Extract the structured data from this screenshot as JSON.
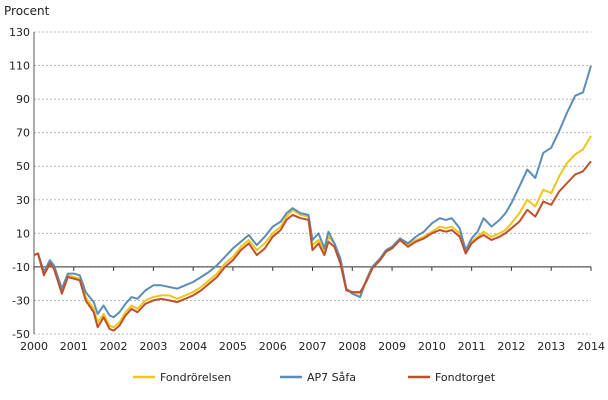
{
  "chart_data": {
    "type": "line",
    "title": "",
    "ylabel": "Procent",
    "xlabel": "",
    "ylim": [
      -50,
      130
    ],
    "xlim": [
      2000,
      2014
    ],
    "yticks": [
      130,
      110,
      90,
      70,
      50,
      30,
      10,
      -10,
      -30,
      -50
    ],
    "xticks": [
      2000,
      2001,
      2002,
      2003,
      2004,
      2005,
      2006,
      2007,
      2008,
      2009,
      2010,
      2011,
      2012,
      2013,
      2014
    ],
    "grid": "horizontal-dashed",
    "legend_position": "bottom",
    "series": [
      {
        "name": "Fondrörelsen",
        "color": "#f2c51a",
        "x": [
          2000,
          2000.1,
          2000.25,
          2000.4,
          2000.5,
          2000.7,
          2000.85,
          2001,
          2001.15,
          2001.3,
          2001.5,
          2001.6,
          2001.75,
          2001.9,
          2002,
          2002.15,
          2002.3,
          2002.45,
          2002.6,
          2002.8,
          2003,
          2003.2,
          2003.4,
          2003.6,
          2003.8,
          2004,
          2004.2,
          2004.4,
          2004.6,
          2004.8,
          2005,
          2005.2,
          2005.4,
          2005.6,
          2005.8,
          2006,
          2006.2,
          2006.35,
          2006.5,
          2006.7,
          2006.9,
          2007,
          2007.15,
          2007.3,
          2007.4,
          2007.55,
          2007.7,
          2007.85,
          2008,
          2008.2,
          2008.35,
          2008.5,
          2008.7,
          2008.85,
          2009,
          2009.2,
          2009.4,
          2009.6,
          2009.8,
          2010,
          2010.2,
          2010.35,
          2010.5,
          2010.7,
          2010.85,
          2011,
          2011.15,
          2011.3,
          2011.5,
          2011.7,
          2011.85,
          2012,
          2012.2,
          2012.4,
          2012.6,
          2012.8,
          2013,
          2013.2,
          2013.4,
          2013.6,
          2013.8,
          2014
        ],
        "values": [
          -3,
          -2,
          -14,
          -7,
          -10,
          -25,
          -15,
          -16,
          -17,
          -28,
          -35,
          -43,
          -38,
          -45,
          -46,
          -43,
          -37,
          -33,
          -35,
          -30,
          -28,
          -27,
          -27,
          -29,
          -27,
          -25,
          -22,
          -18,
          -14,
          -8,
          -4,
          2,
          6,
          0,
          4,
          10,
          14,
          20,
          24,
          21,
          20,
          3,
          6,
          -1,
          8,
          4,
          -6,
          -23,
          -25,
          -26,
          -18,
          -10,
          -5,
          0,
          2,
          6,
          3,
          6,
          8,
          11,
          14,
          13,
          14,
          10,
          -1,
          5,
          8,
          11,
          8,
          10,
          12,
          16,
          22,
          30,
          26,
          36,
          34,
          44,
          52,
          57,
          60,
          68
        ]
      },
      {
        "name": "AP7 Såfa",
        "color": "#5b8db8",
        "x": [
          2000,
          2000.1,
          2000.25,
          2000.4,
          2000.5,
          2000.7,
          2000.85,
          2001,
          2001.15,
          2001.3,
          2001.5,
          2001.6,
          2001.75,
          2001.9,
          2002,
          2002.15,
          2002.3,
          2002.45,
          2002.6,
          2002.8,
          2003,
          2003.2,
          2003.4,
          2003.6,
          2003.8,
          2004,
          2004.2,
          2004.4,
          2004.6,
          2004.8,
          2005,
          2005.2,
          2005.4,
          2005.6,
          2005.8,
          2006,
          2006.2,
          2006.35,
          2006.5,
          2006.7,
          2006.9,
          2007,
          2007.15,
          2007.3,
          2007.4,
          2007.55,
          2007.7,
          2007.85,
          2008,
          2008.2,
          2008.35,
          2008.5,
          2008.7,
          2008.85,
          2009,
          2009.2,
          2009.4,
          2009.6,
          2009.8,
          2010,
          2010.2,
          2010.35,
          2010.5,
          2010.7,
          2010.85,
          2011,
          2011.15,
          2011.3,
          2011.5,
          2011.7,
          2011.85,
          2012,
          2012.2,
          2012.4,
          2012.6,
          2012.8,
          2013,
          2013.2,
          2013.4,
          2013.6,
          2013.8,
          2014
        ],
        "values": [
          -3,
          -2,
          -13,
          -6,
          -9,
          -23,
          -14,
          -14,
          -15,
          -25,
          -31,
          -38,
          -33,
          -39,
          -40,
          -37,
          -32,
          -28,
          -29,
          -24,
          -21,
          -21,
          -22,
          -23,
          -21,
          -19,
          -16,
          -13,
          -9,
          -4,
          1,
          5,
          9,
          3,
          8,
          14,
          17,
          22,
          25,
          22,
          21,
          6,
          10,
          1,
          11,
          4,
          -5,
          -23,
          -26,
          -28,
          -18,
          -10,
          -5,
          0,
          2,
          7,
          4,
          8,
          11,
          16,
          19,
          18,
          19,
          13,
          0,
          7,
          11,
          19,
          14,
          18,
          22,
          28,
          38,
          48,
          43,
          58,
          61,
          71,
          82,
          92,
          94,
          110
        ]
      },
      {
        "name": "Fondtorget",
        "color": "#c0502a",
        "x": [
          2000,
          2000.1,
          2000.25,
          2000.4,
          2000.5,
          2000.7,
          2000.85,
          2001,
          2001.15,
          2001.3,
          2001.5,
          2001.6,
          2001.75,
          2001.9,
          2002,
          2002.15,
          2002.3,
          2002.45,
          2002.6,
          2002.8,
          2003,
          2003.2,
          2003.4,
          2003.6,
          2003.8,
          2004,
          2004.2,
          2004.4,
          2004.6,
          2004.8,
          2005,
          2005.2,
          2005.4,
          2005.6,
          2005.8,
          2006,
          2006.2,
          2006.35,
          2006.5,
          2006.7,
          2006.9,
          2007,
          2007.15,
          2007.3,
          2007.4,
          2007.55,
          2007.7,
          2007.85,
          2008,
          2008.2,
          2008.35,
          2008.5,
          2008.7,
          2008.85,
          2009,
          2009.2,
          2009.4,
          2009.6,
          2009.8,
          2010,
          2010.2,
          2010.35,
          2010.5,
          2010.7,
          2010.85,
          2011,
          2011.15,
          2011.3,
          2011.5,
          2011.7,
          2011.85,
          2012,
          2012.2,
          2012.4,
          2012.6,
          2012.8,
          2013,
          2013.2,
          2013.4,
          2013.6,
          2013.8,
          2014
        ],
        "values": [
          -3,
          -2,
          -15,
          -8,
          -11,
          -26,
          -16,
          -17,
          -18,
          -30,
          -37,
          -46,
          -40,
          -47,
          -48,
          -45,
          -39,
          -35,
          -37,
          -32,
          -30,
          -29,
          -30,
          -31,
          -29,
          -27,
          -24,
          -20,
          -16,
          -10,
          -6,
          0,
          4,
          -3,
          1,
          8,
          12,
          18,
          21,
          19,
          18,
          0,
          4,
          -3,
          5,
          2,
          -8,
          -24,
          -25,
          -25,
          -19,
          -11,
          -6,
          -1,
          1,
          6,
          2,
          5,
          7,
          10,
          12,
          11,
          12,
          8,
          -2,
          4,
          7,
          9,
          6,
          8,
          10,
          13,
          17,
          24,
          20,
          29,
          27,
          35,
          40,
          45,
          47,
          53
        ]
      }
    ]
  }
}
